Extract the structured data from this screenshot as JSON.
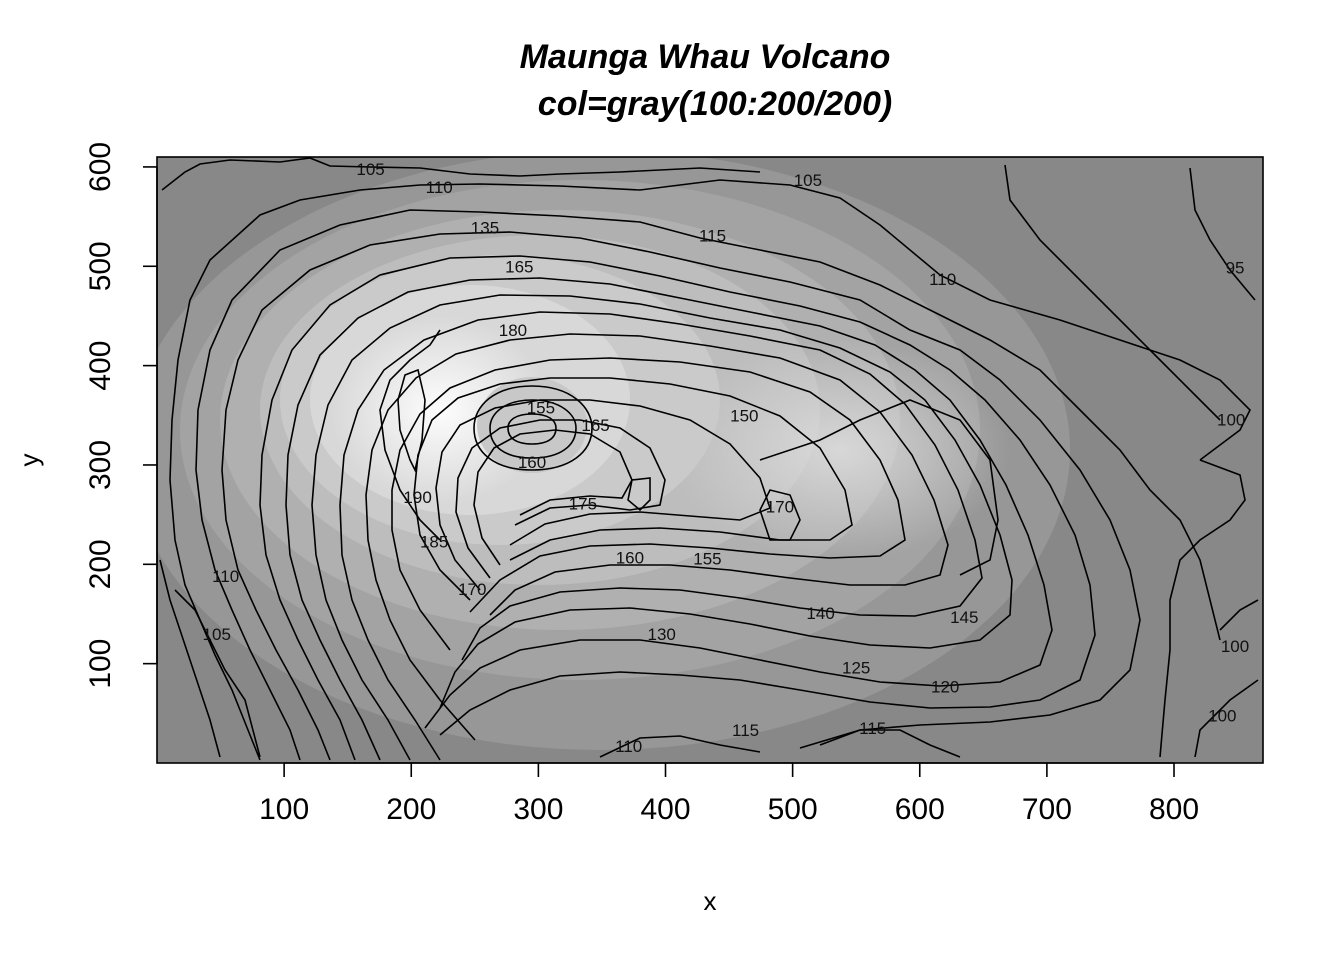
{
  "chart_data": {
    "type": "contour",
    "title": "Maunga Whau Volcano",
    "subtitle": "col=gray(100:200/200)",
    "xlabel": "x",
    "ylabel": "y",
    "xlim": [
      0,
      870
    ],
    "ylim": [
      0,
      610
    ],
    "x_ticks": [
      100,
      200,
      300,
      400,
      500,
      600,
      700,
      800
    ],
    "y_ticks": [
      100,
      200,
      300,
      400,
      500,
      600
    ],
    "colors": {
      "low": "#808080",
      "high": "#ffffff",
      "line": "#000000"
    },
    "labels": [
      {
        "text": "105",
        "x": 168,
        "y": 598
      },
      {
        "text": "110",
        "x": 222,
        "y": 580
      },
      {
        "text": "135",
        "x": 258,
        "y": 539
      },
      {
        "text": "165",
        "x": 285,
        "y": 500
      },
      {
        "text": "180",
        "x": 280,
        "y": 436
      },
      {
        "text": "155",
        "x": 302,
        "y": 358
      },
      {
        "text": "165",
        "x": 345,
        "y": 340
      },
      {
        "text": "160",
        "x": 295,
        "y": 303
      },
      {
        "text": "175",
        "x": 335,
        "y": 261
      },
      {
        "text": "190",
        "x": 205,
        "y": 268
      },
      {
        "text": "185",
        "x": 218,
        "y": 223
      },
      {
        "text": "170",
        "x": 248,
        "y": 175
      },
      {
        "text": "160",
        "x": 372,
        "y": 207
      },
      {
        "text": "155",
        "x": 433,
        "y": 206
      },
      {
        "text": "150",
        "x": 462,
        "y": 350
      },
      {
        "text": "170",
        "x": 490,
        "y": 258
      },
      {
        "text": "140",
        "x": 522,
        "y": 151
      },
      {
        "text": "145",
        "x": 635,
        "y": 147
      },
      {
        "text": "130",
        "x": 397,
        "y": 130
      },
      {
        "text": "125",
        "x": 550,
        "y": 96
      },
      {
        "text": "120",
        "x": 620,
        "y": 77
      },
      {
        "text": "115",
        "x": 463,
        "y": 33
      },
      {
        "text": "115",
        "x": 563,
        "y": 35
      },
      {
        "text": "110",
        "x": 371,
        "y": 17
      },
      {
        "text": "105",
        "x": 512,
        "y": 587
      },
      {
        "text": "115",
        "x": 437,
        "y": 531
      },
      {
        "text": "110",
        "x": 618,
        "y": 487
      },
      {
        "text": "95",
        "x": 848,
        "y": 499
      },
      {
        "text": "100",
        "x": 845,
        "y": 346
      },
      {
        "text": "110",
        "x": 54,
        "y": 188
      },
      {
        "text": "105",
        "x": 47,
        "y": 130
      },
      {
        "text": "100",
        "x": 848,
        "y": 118
      },
      {
        "text": "100",
        "x": 838,
        "y": 48
      }
    ]
  }
}
